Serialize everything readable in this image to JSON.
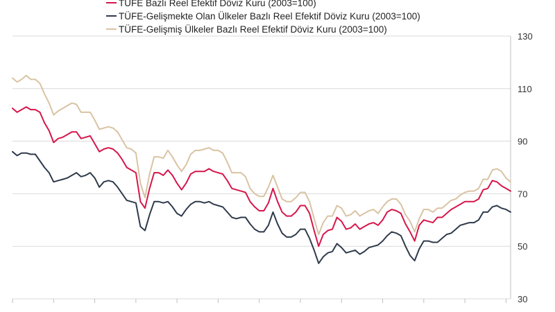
{
  "chart_data": {
    "type": "line",
    "title": "",
    "xlabel": "",
    "ylabel": "",
    "ylim": [
      30,
      130
    ],
    "yticks": [
      30,
      50,
      70,
      90,
      110,
      130
    ],
    "y_axis_side": "right",
    "grid": true,
    "legend_position": "top-left",
    "x_tick_labels_visible": false,
    "series": [
      {
        "name": "TÜFE  Bazlı Reel Efektif Döviz Kuru (2003=100)",
        "color": "#d6154a",
        "values": [
          102.5,
          101,
          102,
          103,
          102,
          102,
          101,
          97,
          94,
          89.5,
          91,
          91.5,
          92.5,
          93.5,
          93.5,
          91,
          91.5,
          92,
          89,
          86,
          87,
          87.5,
          87,
          85.5,
          83,
          80,
          79,
          78,
          67,
          64.5,
          72,
          78,
          78,
          77,
          79,
          77,
          74,
          71.5,
          74,
          77.5,
          78.5,
          78.5,
          78.5,
          79.5,
          78.5,
          78,
          77.5,
          75,
          72,
          71.5,
          71,
          70.5,
          67,
          65,
          63.5,
          63.5,
          66.5,
          72,
          67,
          63,
          61.5,
          61.5,
          63,
          65.5,
          65.5,
          62.5,
          56,
          50,
          54.5,
          56,
          56.5,
          61,
          59.5,
          56.5,
          57,
          58.5,
          56.5,
          57.5,
          58.5,
          59,
          58,
          60,
          63,
          64,
          63.5,
          62.5,
          58.5,
          55.5,
          52,
          58,
          60,
          59.5,
          59,
          61,
          61,
          62.5,
          64,
          65,
          66,
          67,
          67,
          67,
          68,
          71.5,
          72,
          75,
          74.5,
          73,
          72,
          71
        ]
      },
      {
        "name": "TÜFE-Gelişmekte Olan Ülkeler Bazlı Reel Efektif Döviz Kuru (2003=100)",
        "color": "#2e3a4b",
        "values": [
          86,
          84.5,
          85.5,
          85.5,
          85,
          85,
          82.5,
          80,
          78,
          74.5,
          75,
          75.5,
          76,
          77,
          78,
          76.5,
          77,
          78,
          76,
          72.5,
          74.5,
          75,
          74.5,
          72.5,
          70,
          67.5,
          67,
          66.5,
          57.5,
          56,
          62,
          67,
          67,
          66.5,
          67,
          65,
          62.5,
          61.5,
          64,
          66,
          67,
          67,
          66.5,
          67,
          66,
          65.5,
          65,
          63,
          61,
          60.5,
          61,
          61,
          58.5,
          56.5,
          55.5,
          55.5,
          58,
          63,
          58.5,
          55,
          53.5,
          53.5,
          54.5,
          56.5,
          56.5,
          53,
          48.5,
          43.5,
          46,
          47.5,
          48,
          51,
          49.5,
          47.5,
          48,
          48.5,
          47,
          48,
          49.5,
          50,
          50.5,
          52,
          54,
          55.5,
          55,
          54,
          50,
          46.5,
          44.5,
          49,
          52,
          52,
          51.5,
          51.5,
          53,
          54.5,
          55,
          56.5,
          58,
          58.5,
          59,
          59,
          60,
          63,
          63,
          65,
          65.5,
          64.5,
          64,
          63
        ]
      },
      {
        "name": "TÜFE-Gelişmiş Ülkeler Bazlı Reel Efektif Döviz Kuru (2003=100)",
        "color": "#d9c3a3",
        "values": [
          114,
          112.5,
          113.5,
          115,
          113.5,
          113.5,
          112,
          108,
          104.5,
          100,
          101.5,
          102.5,
          103.5,
          104.5,
          104,
          101,
          101,
          101,
          98,
          94.5,
          95,
          95.5,
          95,
          93.5,
          90.5,
          87.5,
          87,
          85.5,
          74,
          68.5,
          77.5,
          84,
          84,
          83.5,
          86.5,
          84,
          81,
          78.5,
          81,
          85,
          86.5,
          86.5,
          87,
          87.5,
          86.5,
          86.5,
          85.5,
          82,
          78,
          78,
          78,
          76.5,
          72,
          70,
          69,
          69,
          72.5,
          77,
          72.5,
          68,
          67,
          67,
          68.5,
          70.5,
          70.5,
          67,
          60.5,
          54.5,
          59,
          61.5,
          61.5,
          65.5,
          64.5,
          61.5,
          62,
          63.5,
          61.5,
          62.5,
          63.5,
          64,
          62.5,
          65,
          67,
          68,
          68,
          66,
          62,
          59.5,
          55.5,
          60.5,
          64,
          64,
          63,
          64.5,
          64.5,
          66,
          67.5,
          68,
          69.5,
          70.5,
          71,
          71,
          72,
          75.5,
          75.5,
          79,
          79.5,
          78.5,
          76,
          74.5
        ]
      }
    ]
  }
}
